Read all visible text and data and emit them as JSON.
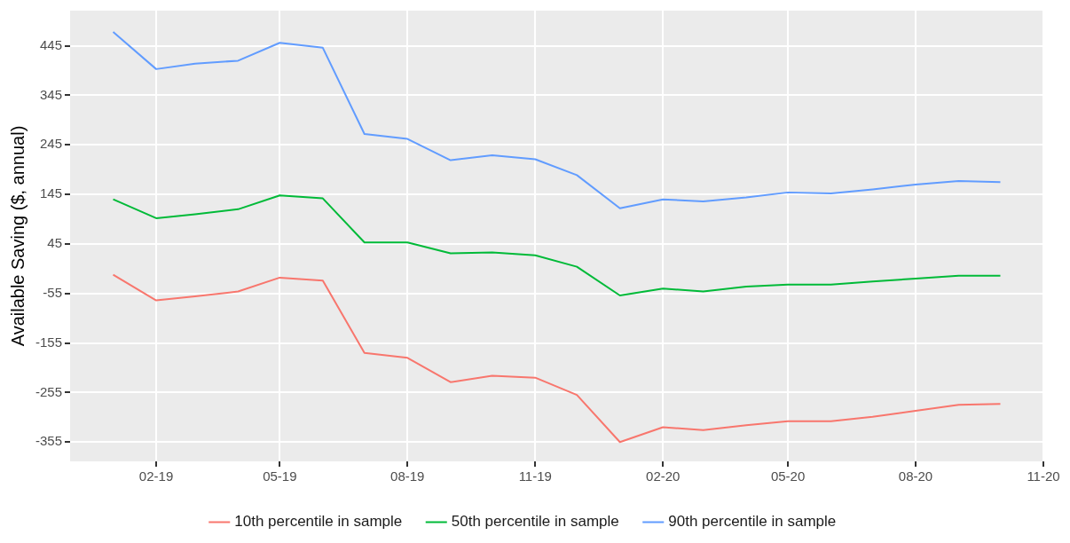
{
  "chart_data": {
    "type": "line",
    "ylabel": "Available Saving ($, annual)",
    "x": [
      "2019-01",
      "2019-02",
      "2019-03",
      "2019-04",
      "2019-05",
      "2019-06",
      "2019-07",
      "2019-08",
      "2019-09",
      "2019-10",
      "2019-11",
      "2019-12",
      "2020-01",
      "2020-02",
      "2020-03",
      "2020-04",
      "2020-05",
      "2020-06",
      "2020-07",
      "2020-08",
      "2020-09",
      "2020-10"
    ],
    "series": [
      {
        "name": "10th percentile in sample",
        "color": "#f8766d",
        "values": [
          -17,
          -69,
          -61,
          -51,
          -23,
          -29,
          -175,
          -185,
          -234,
          -221,
          -225,
          -260,
          -355,
          -325,
          -331,
          -321,
          -313,
          -313,
          -304,
          -292,
          -280,
          -278
        ]
      },
      {
        "name": "50th percentile in sample",
        "color": "#00ba38",
        "values": [
          135,
          97,
          105,
          115,
          143,
          137,
          48,
          48,
          26,
          28,
          22,
          -1,
          -59,
          -45,
          -51,
          -41,
          -37,
          -37,
          -31,
          -25,
          -19,
          -19
        ]
      },
      {
        "name": "90th percentile in sample",
        "color": "#619cff",
        "values": [
          473,
          398,
          409,
          415,
          451,
          441,
          267,
          257,
          214,
          224,
          216,
          184,
          117,
          135,
          131,
          139,
          149,
          147,
          155,
          165,
          172,
          170
        ]
      }
    ],
    "xlim": [
      "2018-12",
      "2020-11"
    ],
    "xticks": [
      {
        "value": "2019-02",
        "label": "02-19"
      },
      {
        "value": "2019-05",
        "label": "05-19"
      },
      {
        "value": "2019-08",
        "label": "08-19"
      },
      {
        "value": "2019-11",
        "label": "11-19"
      },
      {
        "value": "2020-02",
        "label": "02-20"
      },
      {
        "value": "2020-05",
        "label": "05-20"
      },
      {
        "value": "2020-08",
        "label": "08-20"
      },
      {
        "value": "2020-11",
        "label": "11-20"
      }
    ],
    "ylim": [
      -394,
      516
    ],
    "yticks": [
      -355,
      -255,
      -155,
      -55,
      45,
      145,
      245,
      345,
      445
    ],
    "grid": true,
    "legend": "bottom",
    "marker": "none",
    "line_style": "solid"
  }
}
